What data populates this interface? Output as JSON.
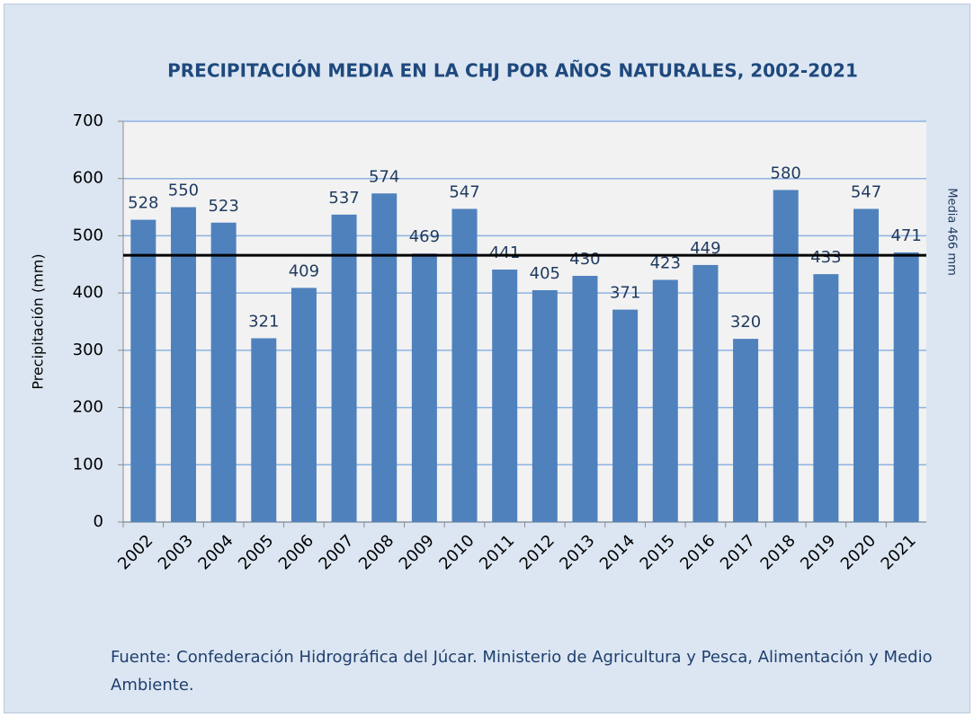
{
  "chart_data": {
    "type": "bar",
    "title": "PRECIPITACIÓN MEDIA EN LA CHJ POR AÑOS NATURALES, 2002-2021",
    "y_label": "Precipitación (mm)",
    "categories": [
      "2002",
      "2003",
      "2004",
      "2005",
      "2006",
      "2007",
      "2008",
      "2009",
      "2010",
      "2011",
      "2012",
      "2013",
      "2014",
      "2015",
      "2016",
      "2017",
      "2018",
      "2019",
      "2020",
      "2021"
    ],
    "values": [
      528,
      550,
      523,
      321,
      409,
      537,
      574,
      469,
      547,
      441,
      405,
      430,
      371,
      423,
      449,
      320,
      580,
      433,
      547,
      471
    ],
    "color": "#4f81bd",
    "ylim": [
      0,
      700
    ],
    "yticks": [
      0,
      100,
      200,
      300,
      400,
      500,
      600,
      700
    ],
    "grid": true,
    "mean_line": {
      "value": 466,
      "label": "Media  466 mm",
      "color": "#000000"
    },
    "source": "Fuente: Confederación Hidrográfica del Júcar. Ministerio de Agricultura y Pesca, Alimentación y Medio Ambiente."
  }
}
